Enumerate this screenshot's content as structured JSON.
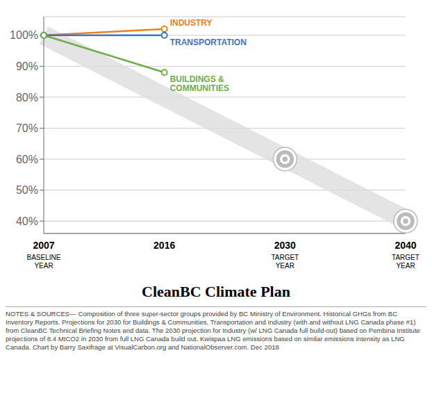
{
  "chart_data": {
    "type": "line",
    "title": "CleanBC Climate Plan",
    "notes": "NOTES & SOURCES— Composition of three super-sector groups provided by BC Ministry of Environment. Historical GHGs from BC Inventory Reports. Projections for 2030 for Buildings & Communities, Transportation and Industry (with and without LNG Canada phase #1) from CleanBC Technical Briefing Notes and data. The 2030 projection for Industry (w/ LNG Canada full build-out) based on Pembina Institute  projections of 8.4 MtCO2 in 2030 from full LNG Canada build out. Kwispaa LNG emissions based on similar emissions intensity as LNG Canada. Chart by Barry Saxifrage at VisualCarbon.org and NationalObserver.com. Dec 2018",
    "categories": [
      "2007",
      "2016",
      "2030",
      "2040"
    ],
    "annotations": [
      {
        "x": "2007",
        "text": "BASELINE\nYEAR"
      },
      {
        "x": "2030",
        "text": "TARGET\nYEAR"
      },
      {
        "x": "2040",
        "text": "TARGET\nYEAR"
      }
    ],
    "series": [
      {
        "name": "INDUSTRY",
        "color": "#E8821A",
        "values": [
          100,
          102,
          null,
          null
        ]
      },
      {
        "name": "TRANSPORTATION",
        "color": "#4472C4",
        "values": [
          100,
          100,
          null,
          null
        ]
      },
      {
        "name": "BUILDINGS &\nCOMMUNITIES",
        "color": "#70AD47",
        "values": [
          100,
          88,
          null,
          null
        ]
      }
    ],
    "targets": {
      "color": "#BBBBBB",
      "values": [
        null,
        null,
        60,
        40
      ]
    },
    "arrow": {
      "color": "#DDDDDD",
      "from": {
        "x": "2007",
        "y": 100
      },
      "to": {
        "x": "2040",
        "y": 40.5
      }
    },
    "ylim": [
      36,
      106
    ],
    "yticks": [
      {
        "value": 40,
        "label": "40%"
      },
      {
        "value": 50,
        "label": "50%"
      },
      {
        "value": 60,
        "label": "60%"
      },
      {
        "value": 70,
        "label": "70%"
      },
      {
        "value": 80,
        "label": "80%"
      },
      {
        "value": 90,
        "label": "90%"
      },
      {
        "value": 100,
        "label": "100%"
      }
    ],
    "grid": true,
    "legend": "none",
    "marker": "o"
  }
}
